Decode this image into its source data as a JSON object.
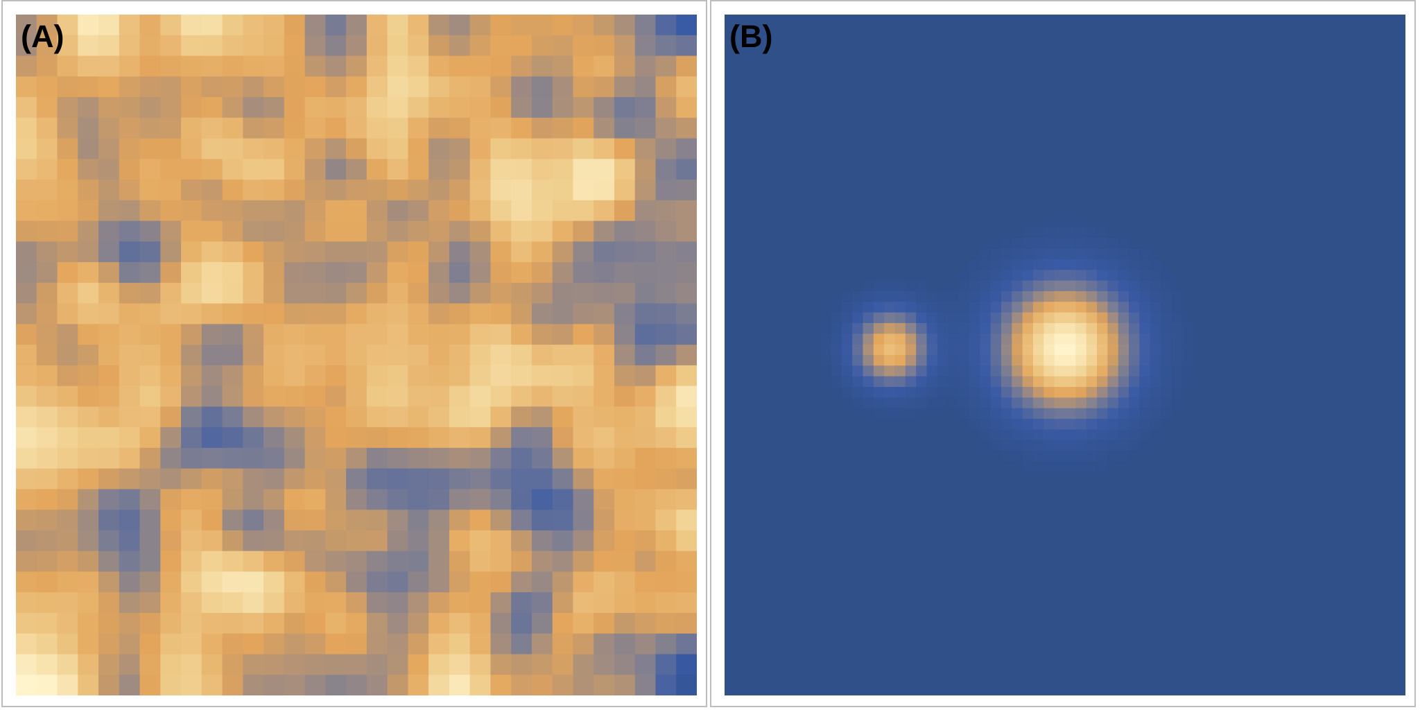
{
  "panels": [
    {
      "label": "(A)"
    },
    {
      "label": "(B)"
    }
  ],
  "colormap": [
    "#2f4f89",
    "#3a5ba6",
    "#7f7f92",
    "#e3a55b",
    "#f0cf8e",
    "#fff4cc"
  ],
  "background_color": "#30508a"
}
